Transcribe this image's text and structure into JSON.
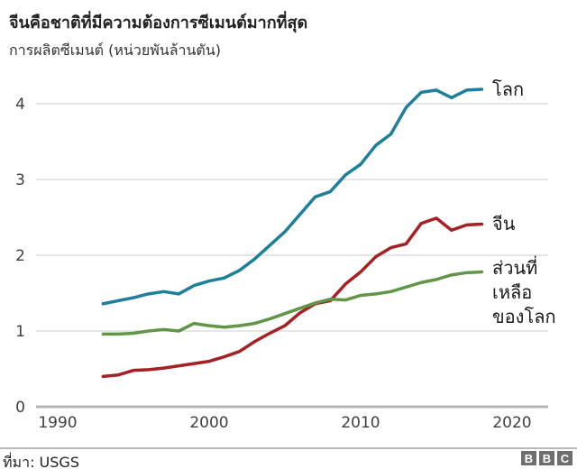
{
  "header": {
    "title": "จีนคือชาติที่มีความต้องการซีเมนต์มากที่สุด",
    "subtitle": "การผลิตซีเมนต์ (หน่วยพันล้านตัน)"
  },
  "chart_data": {
    "type": "line",
    "title": "จีนคือชาติที่มีความต้องการซีเมนต์มากที่สุด",
    "subtitle": "การผลิตซีเมนต์ (หน่วยพันล้านตัน)",
    "xlabel": "",
    "ylabel": "หน่วยพันล้านตัน",
    "x": [
      1993,
      1994,
      1995,
      1996,
      1997,
      1998,
      1999,
      2000,
      2001,
      2002,
      2003,
      2004,
      2005,
      2006,
      2007,
      2008,
      2009,
      2010,
      2011,
      2012,
      2013,
      2014,
      2015,
      2016,
      2017,
      2018
    ],
    "series": [
      {
        "name": "world",
        "label": "โลก",
        "color": "#1d7f9d",
        "values": [
          1.36,
          1.4,
          1.44,
          1.49,
          1.52,
          1.49,
          1.6,
          1.66,
          1.7,
          1.8,
          1.95,
          2.13,
          2.31,
          2.54,
          2.77,
          2.84,
          3.06,
          3.2,
          3.45,
          3.6,
          3.95,
          4.15,
          4.18,
          4.08,
          4.18,
          4.19
        ]
      },
      {
        "name": "china",
        "label": "จีน",
        "color": "#a62024",
        "values": [
          0.4,
          0.42,
          0.48,
          0.49,
          0.51,
          0.54,
          0.57,
          0.6,
          0.66,
          0.73,
          0.86,
          0.97,
          1.07,
          1.24,
          1.36,
          1.4,
          1.62,
          1.78,
          1.98,
          2.1,
          2.15,
          2.42,
          2.49,
          2.33,
          2.4,
          2.41
        ]
      },
      {
        "name": "rest-of-world",
        "label": "ส่วนที่เหลือ\nของโลก",
        "color": "#619646",
        "values": [
          0.96,
          0.96,
          0.97,
          1.0,
          1.02,
          1.0,
          1.1,
          1.07,
          1.05,
          1.07,
          1.1,
          1.16,
          1.23,
          1.3,
          1.37,
          1.42,
          1.41,
          1.47,
          1.49,
          1.52,
          1.58,
          1.64,
          1.68,
          1.74,
          1.77,
          1.78
        ]
      }
    ],
    "yticks": [
      0,
      1,
      2,
      3,
      4
    ],
    "xticks": [
      1990,
      2000,
      2010,
      2020
    ],
    "ylim": [
      0,
      4.4
    ],
    "xlim": [
      1990,
      2022
    ],
    "grid": true,
    "legend_position": "right-of-line-ends",
    "axis_text_color": "#404040",
    "gridline_color": "#dedede",
    "baseline_color": "#b3b3b3"
  },
  "footer": {
    "source_label": "ที่มา: USGS",
    "brand_letters": [
      "B",
      "B",
      "C"
    ]
  }
}
